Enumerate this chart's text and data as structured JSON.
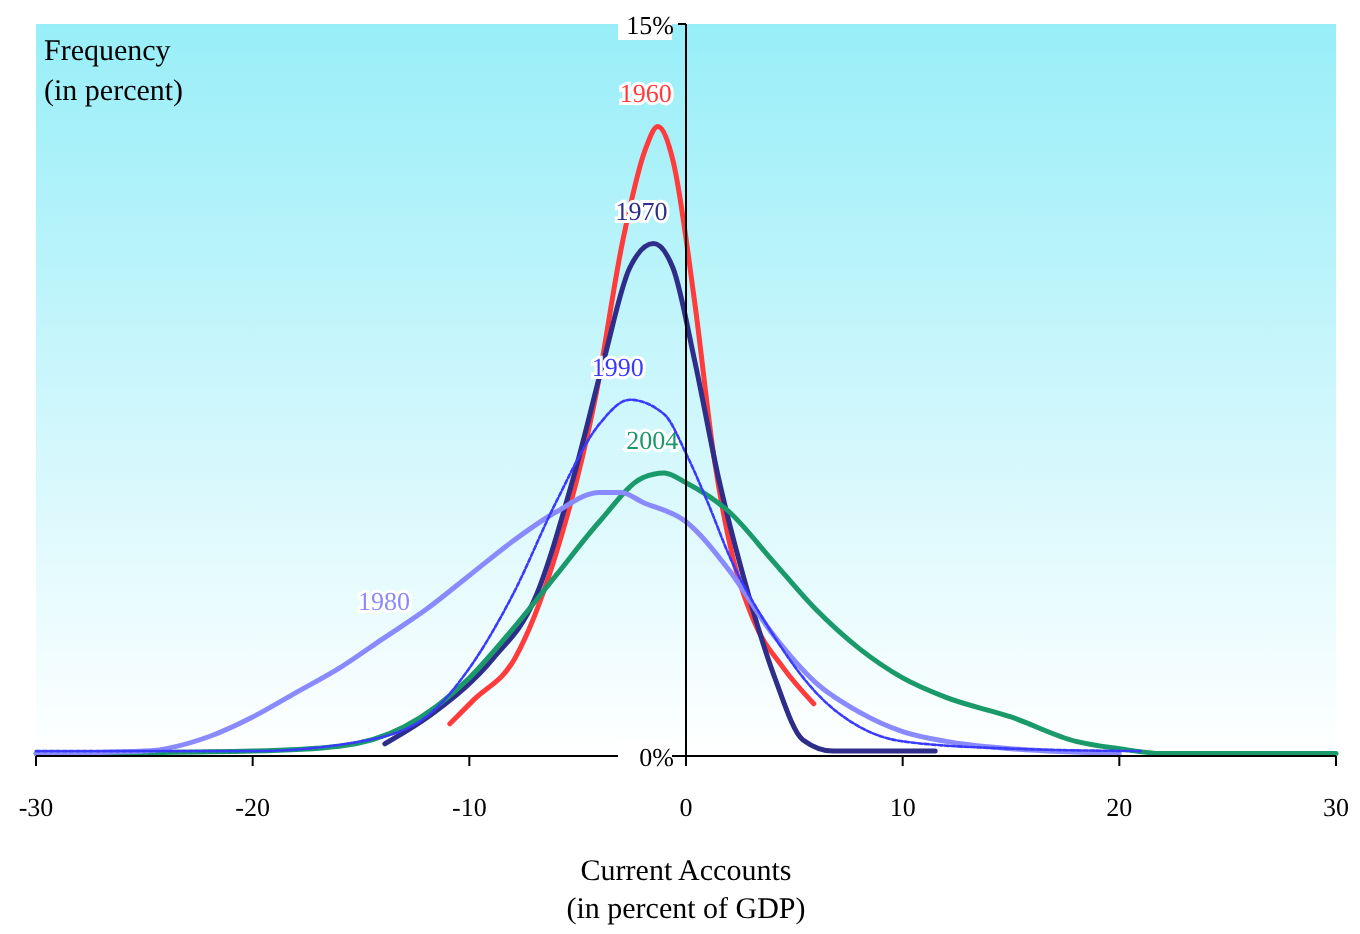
{
  "chart_data": {
    "type": "line",
    "xlabel": "Current Accounts\n(in percent of GDP)",
    "ylabel": "Frequency\n(in percent)",
    "xlim": [
      -30,
      30
    ],
    "xticks": [
      -30,
      -20,
      -10,
      0,
      10,
      20,
      30
    ],
    "ylim": [
      0,
      15
    ],
    "yticks": [
      {
        "value": 0,
        "label": "0%"
      },
      {
        "value": 15,
        "label": "15%"
      }
    ],
    "grid": false,
    "marker": "none",
    "series": [
      {
        "name": "1960",
        "color": "#ff3b3b",
        "line_style": "solid",
        "x": [
          -10.9,
          -9.8,
          -7.9,
          -6.1,
          -4.2,
          -2.9,
          -1.9,
          -1.3,
          -0.6,
          0.4,
          1.3,
          2.2,
          3.1,
          4.5,
          5.9
        ],
        "values": [
          0.66,
          1.15,
          2.0,
          4.0,
          7.3,
          10.6,
          12.4,
          12.9,
          12.2,
          9.3,
          6.1,
          4.0,
          2.8,
          1.8,
          1.07
        ]
      },
      {
        "name": "1970",
        "color": "#2e2e8a",
        "line_style": "solid",
        "x": [
          -13.9,
          -11.6,
          -8.9,
          -7.0,
          -5.2,
          -3.8,
          -2.6,
          -1.5,
          -0.6,
          0.4,
          1.5,
          2.7,
          4.1,
          5.4,
          6.8,
          11.5
        ],
        "values": [
          0.25,
          0.9,
          2.0,
          3.2,
          5.7,
          8.1,
          10.0,
          10.5,
          10.0,
          8.1,
          5.7,
          3.6,
          1.6,
          0.33,
          0.1,
          0.1
        ]
      },
      {
        "name": "1990",
        "color": "#3a3aff",
        "line_style": "dashed",
        "x": [
          -30,
          -20,
          -15,
          -12,
          -10,
          -8,
          -6,
          -4,
          -2.6,
          -1,
          0,
          1,
          2,
          4,
          6,
          8,
          10,
          15,
          21
        ],
        "values": [
          0.1,
          0.1,
          0.3,
          0.8,
          1.8,
          3.3,
          5.2,
          6.8,
          7.3,
          7.0,
          6.2,
          5.2,
          4.1,
          2.5,
          1.3,
          0.6,
          0.3,
          0.15,
          0.1
        ]
      },
      {
        "name": "2004",
        "color": "#1a9a6a",
        "line_style": "solid",
        "x": [
          -30,
          -20,
          -16,
          -13,
          -10,
          -8,
          -6,
          -4,
          -2,
          -1,
          0,
          2,
          4,
          6,
          8,
          10,
          12,
          15,
          18,
          20,
          22,
          30
        ],
        "values": [
          0.05,
          0.1,
          0.2,
          0.6,
          1.6,
          2.6,
          3.7,
          4.8,
          5.7,
          5.8,
          5.6,
          5.0,
          4.0,
          3.0,
          2.2,
          1.6,
          1.2,
          0.8,
          0.3,
          0.15,
          0.05,
          0.05
        ]
      },
      {
        "name": "1980",
        "color": "#8a8aff",
        "line_style": "solid",
        "x": [
          -30,
          -25,
          -22,
          -20,
          -18,
          -16,
          -14,
          -12,
          -10,
          -8,
          -6,
          -4,
          -3,
          -2,
          0,
          2,
          4,
          6,
          8,
          10,
          12,
          15,
          20
        ],
        "values": [
          0.05,
          0.1,
          0.4,
          0.8,
          1.3,
          1.8,
          2.4,
          3.0,
          3.7,
          4.4,
          5.0,
          5.4,
          5.4,
          5.2,
          4.8,
          3.8,
          2.5,
          1.5,
          0.9,
          0.5,
          0.3,
          0.15,
          0.05
        ]
      }
    ]
  }
}
